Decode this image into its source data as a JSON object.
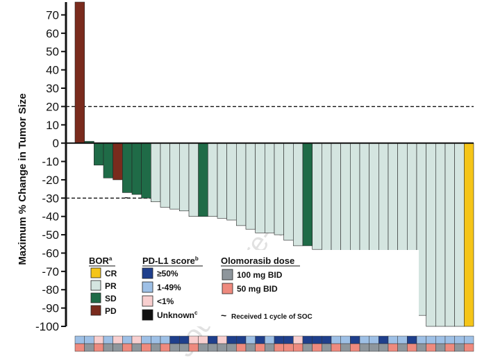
{
  "chart_data": {
    "type": "bar",
    "title": "",
    "ylabel": "Maximum % Change in Tumor Size",
    "xlabel": "",
    "ylim": [
      -100,
      77
    ],
    "yticks": [
      70,
      60,
      50,
      40,
      30,
      20,
      10,
      0,
      -10,
      -20,
      -30,
      -40,
      -50,
      -60,
      -70,
      -80,
      -90,
      -100
    ],
    "reference_lines": [
      20,
      -30
    ],
    "bor_colors": {
      "CR": "#F5C518",
      "PR": "#D4E5E0",
      "SD": "#1F6B47",
      "PD": "#7A2B1D"
    },
    "pdl1_colors": {
      "high": "#1F3F8C",
      "mid": "#9EC0E6",
      "low": "#F8CFCF",
      "unknown": "#111111"
    },
    "dose_colors": {
      "100mg": "#8E969C",
      "50mg": "#EE8A7E"
    },
    "bars": [
      {
        "value": 77,
        "bor": "PD",
        "pdl1": "mid",
        "dose": "50mg"
      },
      {
        "value": 1,
        "bor": "SD",
        "pdl1": "mid",
        "dose": "100mg"
      },
      {
        "value": -12,
        "bor": "SD",
        "pdl1": "low",
        "dose": "50mg"
      },
      {
        "value": -19,
        "bor": "SD",
        "pdl1": "mid",
        "dose": "100mg"
      },
      {
        "value": -20,
        "bor": "PD",
        "pdl1": "low",
        "dose": "100mg"
      },
      {
        "value": -27,
        "bor": "SD",
        "pdl1": "mid",
        "dose": "50mg",
        "soc": true
      },
      {
        "value": -28,
        "bor": "SD",
        "pdl1": "low",
        "dose": "100mg"
      },
      {
        "value": -30,
        "bor": "SD",
        "pdl1": "mid",
        "dose": "50mg"
      },
      {
        "value": -32,
        "bor": "PR",
        "pdl1": "mid",
        "dose": "100mg"
      },
      {
        "value": -35,
        "bor": "PR",
        "pdl1": "mid",
        "dose": "50mg"
      },
      {
        "value": -36,
        "bor": "PR",
        "pdl1": "high",
        "dose": "100mg"
      },
      {
        "value": -37,
        "bor": "PR",
        "pdl1": "high",
        "dose": "100mg"
      },
      {
        "value": -40,
        "bor": "PR",
        "pdl1": "low",
        "dose": "50mg"
      },
      {
        "value": -40,
        "bor": "SD",
        "pdl1": "low",
        "dose": "100mg"
      },
      {
        "value": -40,
        "bor": "PR",
        "pdl1": "high",
        "dose": "100mg"
      },
      {
        "value": -41,
        "bor": "PR",
        "pdl1": "low",
        "dose": "100mg"
      },
      {
        "value": -42,
        "bor": "PR",
        "pdl1": "high",
        "dose": "100mg"
      },
      {
        "value": -45,
        "bor": "PR",
        "pdl1": "high",
        "dose": "50mg"
      },
      {
        "value": -47,
        "bor": "PR",
        "pdl1": "mid",
        "dose": "100mg"
      },
      {
        "value": -49,
        "bor": "PR",
        "pdl1": "high",
        "dose": "50mg"
      },
      {
        "value": -49,
        "bor": "PR",
        "pdl1": "mid",
        "dose": "100mg"
      },
      {
        "value": -50,
        "bor": "PR",
        "pdl1": "high",
        "dose": "50mg"
      },
      {
        "value": -53,
        "bor": "PR",
        "pdl1": "high",
        "dose": "50mg"
      },
      {
        "value": -56,
        "bor": "PR",
        "pdl1": "low",
        "dose": "50mg"
      },
      {
        "value": -56,
        "bor": "SD",
        "pdl1": "high",
        "dose": "100mg"
      },
      {
        "value": -58,
        "bor": "PR",
        "pdl1": "high",
        "dose": "50mg"
      },
      {
        "value": -63,
        "bor": "PR",
        "pdl1": "high",
        "dose": "100mg"
      },
      {
        "value": -64,
        "bor": "PR",
        "pdl1": "mid",
        "dose": "50mg"
      },
      {
        "value": -65,
        "bor": "PR",
        "pdl1": "mid",
        "dose": "100mg"
      },
      {
        "value": -68,
        "bor": "PR",
        "pdl1": "high",
        "dose": "50mg"
      },
      {
        "value": -69,
        "bor": "PR",
        "pdl1": "mid",
        "dose": "100mg"
      },
      {
        "value": -71,
        "bor": "PR",
        "pdl1": "mid",
        "dose": "100mg"
      },
      {
        "value": -73,
        "bor": "PR",
        "pdl1": "high",
        "dose": "100mg"
      },
      {
        "value": -75,
        "bor": "PR",
        "pdl1": "mid",
        "dose": "50mg",
        "soc": true
      },
      {
        "value": -80,
        "bor": "PR",
        "pdl1": "mid",
        "dose": "100mg"
      },
      {
        "value": -89,
        "bor": "PR",
        "pdl1": "high",
        "dose": "50mg"
      },
      {
        "value": -94,
        "bor": "PR",
        "pdl1": "mid",
        "dose": "100mg"
      },
      {
        "value": -100,
        "bor": "PR",
        "pdl1": "mid",
        "dose": "50mg"
      },
      {
        "value": -100,
        "bor": "PR",
        "pdl1": "mid",
        "dose": "100mg"
      },
      {
        "value": -100,
        "bor": "PR",
        "pdl1": "mid",
        "dose": "50mg"
      },
      {
        "value": -100,
        "bor": "PR",
        "pdl1": "mid",
        "dose": "100mg"
      },
      {
        "value": -100,
        "bor": "CR",
        "pdl1": "mid",
        "dose": "50mg"
      }
    ]
  },
  "legend": {
    "bor": {
      "title": "BOR",
      "title_sup": "a",
      "items": [
        {
          "key": "CR",
          "label": "CR"
        },
        {
          "key": "PR",
          "label": "PR"
        },
        {
          "key": "SD",
          "label": "SD"
        },
        {
          "key": "PD",
          "label": "PD"
        }
      ]
    },
    "pdl1": {
      "title": "PD-L1 score",
      "title_sup": "b",
      "items": [
        {
          "key": "high",
          "label": "≥50%"
        },
        {
          "key": "mid",
          "label": "1-49%"
        },
        {
          "key": "low",
          "label": "<1%"
        },
        {
          "key": "unknown",
          "label": "Unknown",
          "sup": "c"
        }
      ]
    },
    "dose": {
      "title": "Olomorasib dose",
      "items": [
        {
          "key": "100mg",
          "label": "100 mg BID"
        },
        {
          "key": "50mg",
          "label": "50 mg BID"
        }
      ]
    },
    "soc_note": "Received 1 cycle of SOC",
    "soc_symbol": "~"
  },
  "watermark": "Journal Pre-proof"
}
